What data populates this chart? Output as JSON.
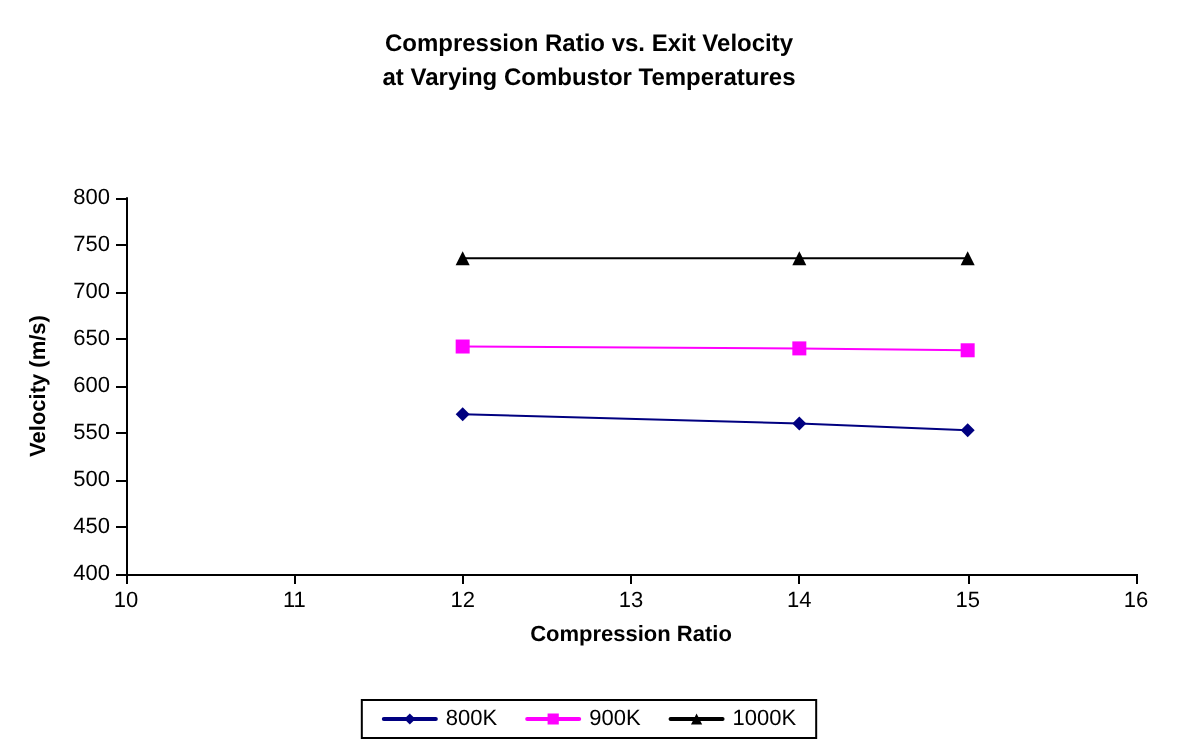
{
  "chart_data": {
    "type": "line",
    "title": "Compression Ratio vs. Exit Velocity\nat Varying Combustor Temperatures",
    "xlabel": "Compression Ratio",
    "ylabel": "Velocity (m/s)",
    "x": [
      12,
      14,
      15
    ],
    "series": [
      {
        "name": "800K",
        "color": "#000080",
        "marker": "diamond",
        "values": [
          570,
          560,
          553
        ]
      },
      {
        "name": "900K",
        "color": "#ff00ff",
        "marker": "square",
        "values": [
          642,
          640,
          638
        ]
      },
      {
        "name": "1000K",
        "color": "#000000",
        "marker": "triangle",
        "values": [
          736,
          736,
          736
        ]
      }
    ],
    "xlim": [
      10,
      16
    ],
    "xticks": [
      10,
      11,
      12,
      13,
      14,
      15,
      16
    ],
    "ylim": [
      400,
      800
    ],
    "yticks": [
      400,
      450,
      500,
      550,
      600,
      650,
      700,
      750,
      800
    ],
    "grid": false,
    "legend": "bottom",
    "line_style": "solid"
  }
}
